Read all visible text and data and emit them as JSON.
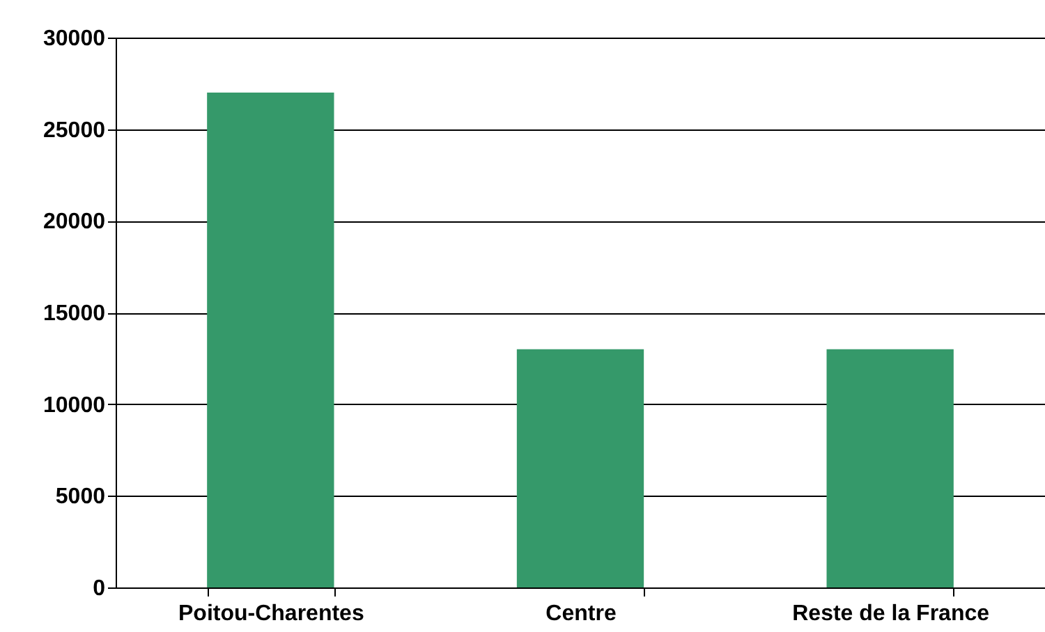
{
  "chart_data": {
    "type": "bar",
    "categories": [
      "Poitou-Charentes",
      "Centre",
      "Reste de la France"
    ],
    "values": [
      27000,
      13000,
      13000
    ],
    "color": "#35996a",
    "ylim": [
      0,
      30000
    ],
    "yticks": [
      0,
      5000,
      10000,
      15000,
      20000,
      25000,
      30000
    ],
    "grid": "y"
  }
}
